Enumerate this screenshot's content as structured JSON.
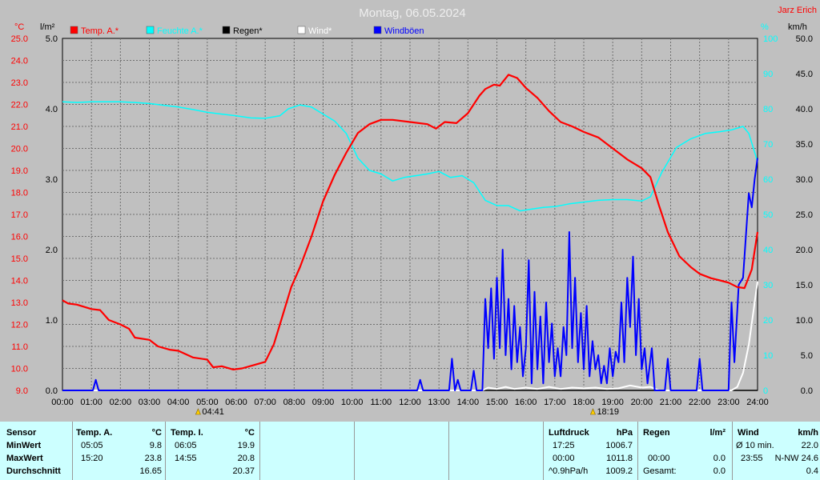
{
  "chart_data": {
    "type": "line",
    "title": "Montag, 06.05.2024",
    "station": "Jarz Erich",
    "x_ticks": [
      "00:00",
      "01:00",
      "02:00",
      "03:00",
      "04:00",
      "05:00",
      "06:00",
      "07:00",
      "08:00",
      "09:00",
      "10:00",
      "11:00",
      "12:00",
      "13:00",
      "14:00",
      "15:00",
      "16:00",
      "17:00",
      "18:00",
      "19:00",
      "20:00",
      "21:00",
      "22:00",
      "23:00",
      "24:00"
    ],
    "xlim": [
      0,
      24
    ],
    "axes": {
      "temp_c": {
        "unit": "°C",
        "lim": [
          9.0,
          25.0
        ],
        "ticks": [
          "25.0",
          "24.0",
          "23.0",
          "22.0",
          "21.0",
          "20.0",
          "19.0",
          "18.0",
          "17.0",
          "16.0",
          "15.0",
          "14.0",
          "13.0",
          "12.0",
          "11.0",
          "10.0",
          "9.0"
        ]
      },
      "rain_lm2": {
        "unit": "l/m²",
        "lim": [
          0.0,
          5.0
        ],
        "ticks": [
          "5.0",
          "4.0",
          "3.0",
          "2.0",
          "1.0",
          "0.0"
        ]
      },
      "humidity_pct": {
        "unit": "%",
        "lim": [
          0,
          100
        ],
        "ticks": [
          "100",
          "90",
          "80",
          "70",
          "60",
          "50",
          "40",
          "30",
          "20",
          "10",
          "0"
        ]
      },
      "wind_kmh": {
        "unit": "km/h",
        "lim": [
          0.0,
          50.0
        ],
        "ticks": [
          "50.0",
          "45.0",
          "40.0",
          "35.0",
          "30.0",
          "25.0",
          "20.0",
          "15.0",
          "10.0",
          "5.0",
          "0.0"
        ]
      }
    },
    "legend": [
      {
        "name": "Temp. A.*",
        "color": "#ff0000"
      },
      {
        "name": "Feuchte A.*",
        "color": "#00ffff"
      },
      {
        "name": "Regen*",
        "color": "#000000"
      },
      {
        "name": "Wind*",
        "color": "#ffffff"
      },
      {
        "name": "Windböen",
        "color": "#0000ff"
      }
    ],
    "grid": true,
    "sunrise": "04:41",
    "sunset": "18:19",
    "series": [
      {
        "name": "Temp. A.*",
        "axis": "temp_c",
        "color": "#ff0000",
        "points": [
          [
            0,
            13.1
          ],
          [
            0.2,
            12.95
          ],
          [
            0.5,
            12.9
          ],
          [
            1,
            12.7
          ],
          [
            1.3,
            12.65
          ],
          [
            1.6,
            12.2
          ],
          [
            2,
            12.0
          ],
          [
            2.3,
            11.8
          ],
          [
            2.5,
            11.4
          ],
          [
            3,
            11.3
          ],
          [
            3.3,
            11.0
          ],
          [
            3.7,
            10.85
          ],
          [
            4,
            10.8
          ],
          [
            4.5,
            10.5
          ],
          [
            5,
            10.4
          ],
          [
            5.2,
            10.05
          ],
          [
            5.5,
            10.1
          ],
          [
            5.9,
            9.95
          ],
          [
            6.2,
            10.0
          ],
          [
            6.6,
            10.15
          ],
          [
            7,
            10.3
          ],
          [
            7.3,
            11.1
          ],
          [
            7.6,
            12.4
          ],
          [
            7.9,
            13.7
          ],
          [
            8.2,
            14.6
          ],
          [
            8.6,
            16.0
          ],
          [
            9,
            17.6
          ],
          [
            9.4,
            18.8
          ],
          [
            9.8,
            19.8
          ],
          [
            10.2,
            20.7
          ],
          [
            10.6,
            21.1
          ],
          [
            11,
            21.3
          ],
          [
            11.4,
            21.3
          ],
          [
            12,
            21.2
          ],
          [
            12.6,
            21.1
          ],
          [
            12.9,
            20.9
          ],
          [
            13.2,
            21.2
          ],
          [
            13.6,
            21.15
          ],
          [
            14,
            21.6
          ],
          [
            14.4,
            22.4
          ],
          [
            14.6,
            22.7
          ],
          [
            14.9,
            22.9
          ],
          [
            15.1,
            22.85
          ],
          [
            15.4,
            23.35
          ],
          [
            15.7,
            23.2
          ],
          [
            16,
            22.75
          ],
          [
            16.4,
            22.3
          ],
          [
            16.8,
            21.7
          ],
          [
            17.2,
            21.2
          ],
          [
            17.6,
            21.0
          ],
          [
            18,
            20.75
          ],
          [
            18.5,
            20.5
          ],
          [
            19,
            20.0
          ],
          [
            19.5,
            19.5
          ],
          [
            20,
            19.1
          ],
          [
            20.3,
            18.7
          ],
          [
            20.6,
            17.4
          ],
          [
            20.9,
            16.2
          ],
          [
            21.3,
            15.1
          ],
          [
            21.7,
            14.6
          ],
          [
            22,
            14.3
          ],
          [
            22.4,
            14.1
          ],
          [
            22.7,
            14.0
          ],
          [
            23,
            13.9
          ],
          [
            23.3,
            13.7
          ],
          [
            23.55,
            13.65
          ],
          [
            23.8,
            14.5
          ],
          [
            24,
            16.2
          ]
        ]
      },
      {
        "name": "Feuchte A.*",
        "axis": "humidity_pct",
        "color": "#00ffff",
        "points": [
          [
            0,
            82
          ],
          [
            0.5,
            81.8
          ],
          [
            1,
            82
          ],
          [
            1.5,
            82
          ],
          [
            2,
            82
          ],
          [
            2.5,
            81.8
          ],
          [
            3,
            81.5
          ],
          [
            3.5,
            81
          ],
          [
            4,
            80.5
          ],
          [
            4.5,
            79.8
          ],
          [
            5,
            79
          ],
          [
            5.5,
            78.5
          ],
          [
            6,
            78
          ],
          [
            6.5,
            77.4
          ],
          [
            7,
            77.3
          ],
          [
            7.5,
            78
          ],
          [
            7.8,
            80
          ],
          [
            8.2,
            81.1
          ],
          [
            8.6,
            80.5
          ],
          [
            9,
            78.5
          ],
          [
            9.4,
            76.5
          ],
          [
            9.8,
            73
          ],
          [
            10.2,
            66
          ],
          [
            10.6,
            62.5
          ],
          [
            11,
            61.5
          ],
          [
            11.4,
            59.5
          ],
          [
            11.8,
            60.5
          ],
          [
            12.2,
            61
          ],
          [
            12.6,
            61.5
          ],
          [
            13,
            62.2
          ],
          [
            13.4,
            60.5
          ],
          [
            13.8,
            61
          ],
          [
            14.2,
            59
          ],
          [
            14.6,
            54
          ],
          [
            15,
            52.5
          ],
          [
            15.4,
            52.5
          ],
          [
            15.8,
            51
          ],
          [
            16.2,
            51.5
          ],
          [
            16.6,
            52
          ],
          [
            17,
            52.2
          ],
          [
            17.5,
            53
          ],
          [
            18,
            53.5
          ],
          [
            18.5,
            54
          ],
          [
            19,
            54.2
          ],
          [
            19.5,
            54.2
          ],
          [
            20,
            53.8
          ],
          [
            20.3,
            55
          ],
          [
            20.7,
            62
          ],
          [
            21.2,
            69
          ],
          [
            21.7,
            71.5
          ],
          [
            22.2,
            73
          ],
          [
            22.7,
            73.5
          ],
          [
            23.1,
            74
          ],
          [
            23.5,
            75
          ],
          [
            23.7,
            73
          ],
          [
            24,
            65
          ]
        ]
      },
      {
        "name": "Regen*",
        "axis": "rain_lm2",
        "color": "#000000",
        "points": [
          [
            0,
            0
          ],
          [
            24,
            0
          ]
        ]
      },
      {
        "name": "Wind*",
        "axis": "wind_kmh",
        "color": "#ffffff",
        "points": [
          [
            0,
            0
          ],
          [
            14.5,
            0
          ],
          [
            14.7,
            0.4
          ],
          [
            15,
            0.2
          ],
          [
            15.3,
            0.5
          ],
          [
            15.6,
            0.2
          ],
          [
            16,
            0.4
          ],
          [
            16.4,
            0.2
          ],
          [
            16.8,
            0.5
          ],
          [
            17.2,
            0.2
          ],
          [
            17.6,
            0.4
          ],
          [
            18,
            0.3
          ],
          [
            18.4,
            0.4
          ],
          [
            18.8,
            0.2
          ],
          [
            19.2,
            0.3
          ],
          [
            19.6,
            0.7
          ],
          [
            20,
            0.4
          ],
          [
            20.3,
            0.5
          ],
          [
            20.6,
            0
          ],
          [
            23.1,
            0
          ],
          [
            23.3,
            0.5
          ],
          [
            23.5,
            2.5
          ],
          [
            23.7,
            6.5
          ],
          [
            23.85,
            11
          ],
          [
            24,
            15.5
          ]
        ]
      },
      {
        "name": "Windböen",
        "axis": "wind_kmh",
        "color": "#0000ff",
        "points": [
          [
            0,
            0
          ],
          [
            1.05,
            0
          ],
          [
            1.15,
            1.5
          ],
          [
            1.25,
            0
          ],
          [
            12.25,
            0
          ],
          [
            12.35,
            1.5
          ],
          [
            12.45,
            0
          ],
          [
            13.35,
            0
          ],
          [
            13.45,
            4.5
          ],
          [
            13.55,
            0
          ],
          [
            13.65,
            1.5
          ],
          [
            13.75,
            0
          ],
          [
            14.1,
            0
          ],
          [
            14.2,
            2.8
          ],
          [
            14.3,
            0
          ],
          [
            14.5,
            0
          ],
          [
            14.6,
            13
          ],
          [
            14.7,
            6
          ],
          [
            14.8,
            14.5
          ],
          [
            14.9,
            4.5
          ],
          [
            15.0,
            16
          ],
          [
            15.1,
            6
          ],
          [
            15.2,
            20
          ],
          [
            15.3,
            5
          ],
          [
            15.4,
            13
          ],
          [
            15.5,
            3
          ],
          [
            15.6,
            12
          ],
          [
            15.7,
            4
          ],
          [
            15.8,
            9
          ],
          [
            15.9,
            2
          ],
          [
            16.0,
            6
          ],
          [
            16.1,
            18.5
          ],
          [
            16.2,
            1
          ],
          [
            16.3,
            14
          ],
          [
            16.4,
            3
          ],
          [
            16.5,
            10.5
          ],
          [
            16.6,
            1
          ],
          [
            16.7,
            12.5
          ],
          [
            16.8,
            4
          ],
          [
            16.9,
            9.5
          ],
          [
            17.0,
            2
          ],
          [
            17.1,
            6
          ],
          [
            17.2,
            2
          ],
          [
            17.3,
            9
          ],
          [
            17.4,
            5
          ],
          [
            17.5,
            22.5
          ],
          [
            17.6,
            6
          ],
          [
            17.7,
            16
          ],
          [
            17.8,
            4
          ],
          [
            17.9,
            11
          ],
          [
            18.0,
            3
          ],
          [
            18.1,
            12
          ],
          [
            18.2,
            2
          ],
          [
            18.3,
            7
          ],
          [
            18.4,
            3
          ],
          [
            18.5,
            5
          ],
          [
            18.6,
            1
          ],
          [
            18.7,
            3.5
          ],
          [
            18.8,
            1
          ],
          [
            18.9,
            6
          ],
          [
            19.0,
            2
          ],
          [
            19.1,
            5.5
          ],
          [
            19.2,
            4
          ],
          [
            19.3,
            12.5
          ],
          [
            19.4,
            4
          ],
          [
            19.5,
            16
          ],
          [
            19.6,
            9
          ],
          [
            19.7,
            19
          ],
          [
            19.8,
            5
          ],
          [
            19.9,
            13
          ],
          [
            20.0,
            3
          ],
          [
            20.1,
            6
          ],
          [
            20.2,
            1
          ],
          [
            20.35,
            6
          ],
          [
            20.45,
            0
          ],
          [
            20.8,
            0
          ],
          [
            20.9,
            4.5
          ],
          [
            21.0,
            0
          ],
          [
            21.9,
            0
          ],
          [
            22.0,
            4.5
          ],
          [
            22.1,
            0
          ],
          [
            23.0,
            0
          ],
          [
            23.1,
            12.5
          ],
          [
            23.2,
            4
          ],
          [
            23.35,
            15
          ],
          [
            23.5,
            16
          ],
          [
            23.7,
            28
          ],
          [
            23.8,
            26
          ],
          [
            23.9,
            30
          ],
          [
            24,
            33
          ]
        ]
      }
    ]
  },
  "table": {
    "sensor": {
      "header": "Sensor",
      "rows": [
        "MinWert",
        "MaxWert",
        "Durchschnitt"
      ]
    },
    "temp_a": {
      "header": "Temp. A.",
      "unit": "°C",
      "min_time": "05:05",
      "min_val": "9.8",
      "max_time": "15:20",
      "max_val": "23.8",
      "avg": "16.65"
    },
    "temp_i": {
      "header": "Temp. I.",
      "unit": "°C",
      "min_time": "06:05",
      "min_val": "19.9",
      "max_time": "14:55",
      "max_val": "20.8",
      "avg": "20.37"
    },
    "pressure": {
      "header": "Luftdruck",
      "unit": "hPa",
      "min_time": "17:25",
      "min_val": "1006.7",
      "max_time": "00:00",
      "max_val": "1011.8",
      "avg_label": "^0.9hPa/h",
      "avg": "1009.2"
    },
    "rain": {
      "header": "Regen",
      "unit": "l/m²",
      "max_time": "00:00",
      "max_val": "0.0",
      "total_label": "Gesamt:",
      "total": "0.0"
    },
    "wind": {
      "header": "Wind",
      "unit": "km/h",
      "min_label": "Ø 10 min.",
      "min_val": "22.0",
      "max_time": "23:55",
      "max_val": "N-NW 24.6",
      "avg": "0.4"
    }
  }
}
